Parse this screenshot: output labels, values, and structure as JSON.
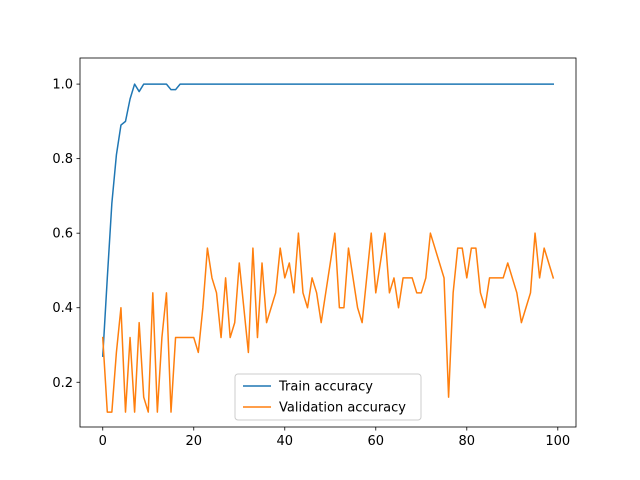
{
  "chart_data": {
    "type": "line",
    "title": "",
    "xlabel": "",
    "ylabel": "",
    "xlim": [
      -5,
      104
    ],
    "ylim": [
      0.08,
      1.07
    ],
    "xticks": [
      0,
      20,
      40,
      60,
      80,
      100
    ],
    "yticks": [
      0.2,
      0.4,
      0.6,
      0.8,
      1.0
    ],
    "xtick_labels": [
      "0",
      "20",
      "40",
      "60",
      "80",
      "100"
    ],
    "ytick_labels": [
      "0.2",
      "0.4",
      "0.6",
      "0.8",
      "1.0"
    ],
    "grid": false,
    "legend_position": "bottom-center",
    "series": [
      {
        "name": "Train accuracy",
        "color": "#1f77b4",
        "x": [
          0,
          1,
          2,
          3,
          4,
          5,
          6,
          7,
          8,
          9,
          10,
          11,
          12,
          13,
          14,
          15,
          16,
          17,
          18,
          19,
          20,
          21,
          22,
          23,
          24,
          25,
          26,
          27,
          28,
          29,
          30,
          31,
          32,
          33,
          34,
          35,
          36,
          37,
          38,
          39,
          40,
          41,
          42,
          43,
          44,
          45,
          46,
          47,
          48,
          49,
          50,
          51,
          52,
          53,
          54,
          55,
          56,
          57,
          58,
          59,
          60,
          61,
          62,
          63,
          64,
          65,
          66,
          67,
          68,
          69,
          70,
          71,
          72,
          73,
          74,
          75,
          76,
          77,
          78,
          79,
          80,
          81,
          82,
          83,
          84,
          85,
          86,
          87,
          88,
          89,
          90,
          91,
          92,
          93,
          94,
          95,
          96,
          97,
          98,
          99
        ],
        "values": [
          0.27,
          0.48,
          0.68,
          0.81,
          0.89,
          0.9,
          0.96,
          1.0,
          0.98,
          1.0,
          1.0,
          1.0,
          1.0,
          1.0,
          1.0,
          0.985,
          0.985,
          1.0,
          1.0,
          1.0,
          1.0,
          1.0,
          1.0,
          1.0,
          1.0,
          1.0,
          1.0,
          1.0,
          1.0,
          1.0,
          1.0,
          1.0,
          1.0,
          1.0,
          1.0,
          1.0,
          1.0,
          1.0,
          1.0,
          1.0,
          1.0,
          1.0,
          1.0,
          1.0,
          1.0,
          1.0,
          1.0,
          1.0,
          1.0,
          1.0,
          1.0,
          1.0,
          1.0,
          1.0,
          1.0,
          1.0,
          1.0,
          1.0,
          1.0,
          1.0,
          1.0,
          1.0,
          1.0,
          1.0,
          1.0,
          1.0,
          1.0,
          1.0,
          1.0,
          1.0,
          1.0,
          1.0,
          1.0,
          1.0,
          1.0,
          1.0,
          1.0,
          1.0,
          1.0,
          1.0,
          1.0,
          1.0,
          1.0,
          1.0,
          1.0,
          1.0,
          1.0,
          1.0,
          1.0,
          1.0,
          1.0,
          1.0,
          1.0,
          1.0,
          1.0,
          1.0,
          1.0,
          1.0,
          1.0,
          1.0
        ]
      },
      {
        "name": "Validation accuracy",
        "color": "#ff7f0e",
        "x": [
          0,
          1,
          2,
          3,
          4,
          5,
          6,
          7,
          8,
          9,
          10,
          11,
          12,
          13,
          14,
          15,
          16,
          17,
          18,
          19,
          20,
          21,
          22,
          23,
          24,
          25,
          26,
          27,
          28,
          29,
          30,
          31,
          32,
          33,
          34,
          35,
          36,
          37,
          38,
          39,
          40,
          41,
          42,
          43,
          44,
          45,
          46,
          47,
          48,
          49,
          50,
          51,
          52,
          53,
          54,
          55,
          56,
          57,
          58,
          59,
          60,
          61,
          62,
          63,
          64,
          65,
          66,
          67,
          68,
          69,
          70,
          71,
          72,
          73,
          74,
          75,
          76,
          77,
          78,
          79,
          80,
          81,
          82,
          83,
          84,
          85,
          86,
          87,
          88,
          89,
          90,
          91,
          92,
          93,
          94,
          95,
          96,
          97,
          98,
          99
        ],
        "values": [
          0.32,
          0.12,
          0.12,
          0.28,
          0.4,
          0.12,
          0.32,
          0.12,
          0.36,
          0.16,
          0.12,
          0.44,
          0.12,
          0.32,
          0.44,
          0.12,
          0.32,
          0.32,
          0.32,
          0.32,
          0.32,
          0.28,
          0.4,
          0.56,
          0.48,
          0.44,
          0.32,
          0.48,
          0.32,
          0.36,
          0.52,
          0.4,
          0.28,
          0.56,
          0.32,
          0.52,
          0.36,
          0.4,
          0.44,
          0.56,
          0.48,
          0.52,
          0.44,
          0.6,
          0.44,
          0.4,
          0.48,
          0.44,
          0.36,
          0.44,
          0.52,
          0.6,
          0.4,
          0.4,
          0.56,
          0.48,
          0.4,
          0.36,
          0.48,
          0.6,
          0.44,
          0.52,
          0.6,
          0.44,
          0.48,
          0.4,
          0.48,
          0.48,
          0.48,
          0.44,
          0.44,
          0.48,
          0.6,
          0.56,
          0.52,
          0.48,
          0.16,
          0.44,
          0.56,
          0.56,
          0.48,
          0.56,
          0.56,
          0.44,
          0.4,
          0.48,
          0.48,
          0.48,
          0.48,
          0.52,
          0.48,
          0.44,
          0.36,
          0.4,
          0.44,
          0.6,
          0.48,
          0.56,
          0.52,
          0.48
        ]
      }
    ]
  }
}
